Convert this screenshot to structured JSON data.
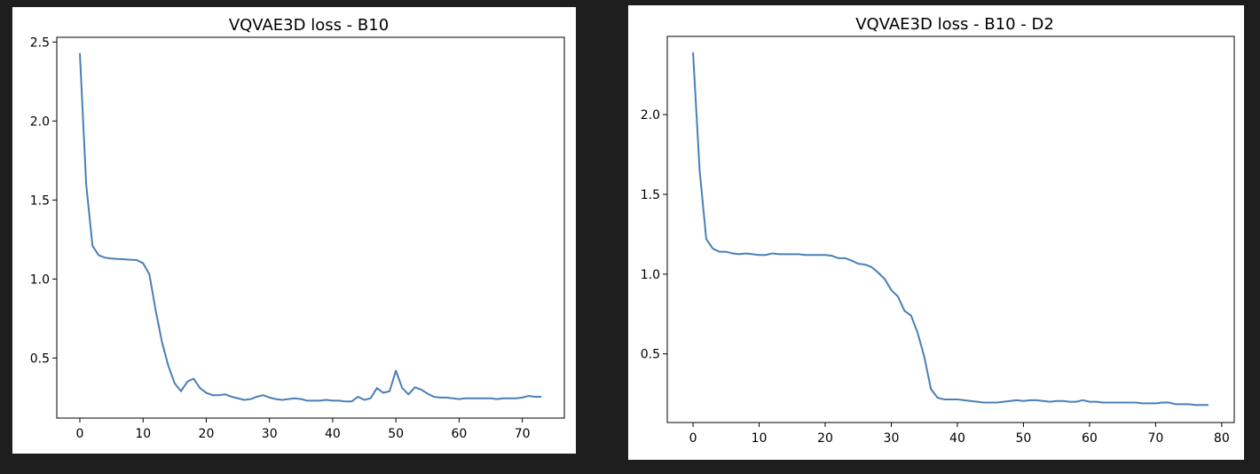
{
  "chart_data": [
    {
      "type": "line",
      "title": "VQVAE3D loss - B10",
      "xlabel": "",
      "ylabel": "",
      "xlim": [
        -3.65,
        76.65
      ],
      "ylim": [
        0.12,
        2.53
      ],
      "xticks": [
        0,
        10,
        20,
        30,
        40,
        50,
        60,
        70
      ],
      "yticks": [
        0.5,
        1.0,
        1.5,
        2.0,
        2.5
      ],
      "xtick_labels": [
        "0",
        "10",
        "20",
        "30",
        "40",
        "50",
        "60",
        "70"
      ],
      "ytick_labels": [
        "0.5",
        "1.0",
        "1.5",
        "2.0",
        "2.5"
      ],
      "grid": false,
      "legend": "none",
      "line_color": "#4a7fb8",
      "series": [
        {
          "x": [
            0,
            1,
            2,
            3,
            4,
            5,
            6,
            7,
            8,
            9,
            10,
            11,
            12,
            13,
            14,
            15,
            16,
            17,
            18,
            19,
            20,
            21,
            22,
            23,
            24,
            25,
            26,
            27,
            28,
            29,
            30,
            31,
            32,
            33,
            34,
            35,
            36,
            37,
            38,
            39,
            40,
            41,
            42,
            43,
            44,
            45,
            46,
            47,
            48,
            49,
            50,
            51,
            52,
            53,
            54,
            55,
            56,
            57,
            58,
            59,
            60,
            61,
            62,
            63,
            64,
            65,
            66,
            67,
            68,
            69,
            70,
            71,
            72,
            73
          ],
          "values": [
            2.43,
            1.6,
            1.21,
            1.15,
            1.135,
            1.13,
            1.127,
            1.125,
            1.122,
            1.12,
            1.1,
            1.03,
            0.8,
            0.6,
            0.45,
            0.34,
            0.29,
            0.35,
            0.37,
            0.31,
            0.28,
            0.265,
            0.265,
            0.27,
            0.255,
            0.245,
            0.235,
            0.24,
            0.255,
            0.265,
            0.25,
            0.24,
            0.235,
            0.24,
            0.245,
            0.24,
            0.23,
            0.23,
            0.23,
            0.235,
            0.23,
            0.23,
            0.225,
            0.225,
            0.255,
            0.235,
            0.245,
            0.31,
            0.28,
            0.29,
            0.42,
            0.31,
            0.27,
            0.315,
            0.3,
            0.275,
            0.255,
            0.25,
            0.25,
            0.245,
            0.24,
            0.245,
            0.245,
            0.245,
            0.245,
            0.245,
            0.24,
            0.245,
            0.245,
            0.245,
            0.25,
            0.26,
            0.255,
            0.255
          ]
        }
      ]
    },
    {
      "type": "line",
      "title": "VQVAE3D loss - B10 - D2",
      "xlabel": "",
      "ylabel": "",
      "xlim": [
        -3.9,
        81.9
      ],
      "ylim": [
        0.07,
        2.49
      ],
      "xticks": [
        0,
        10,
        20,
        30,
        40,
        50,
        60,
        70,
        80
      ],
      "yticks": [
        0.5,
        1.0,
        1.5,
        2.0
      ],
      "xtick_labels": [
        "0",
        "10",
        "20",
        "30",
        "40",
        "50",
        "60",
        "70",
        "80"
      ],
      "ytick_labels": [
        "0.5",
        "1.0",
        "1.5",
        "2.0"
      ],
      "grid": false,
      "legend": "none",
      "line_color": "#4a7fb8",
      "series": [
        {
          "x": [
            0,
            1,
            2,
            3,
            4,
            5,
            6,
            7,
            8,
            9,
            10,
            11,
            12,
            13,
            14,
            15,
            16,
            17,
            18,
            19,
            20,
            21,
            22,
            23,
            24,
            25,
            26,
            27,
            28,
            29,
            30,
            31,
            32,
            33,
            34,
            35,
            36,
            37,
            38,
            39,
            40,
            41,
            42,
            43,
            44,
            45,
            46,
            47,
            48,
            49,
            50,
            51,
            52,
            53,
            54,
            55,
            56,
            57,
            58,
            59,
            60,
            61,
            62,
            63,
            64,
            65,
            66,
            67,
            68,
            69,
            70,
            71,
            72,
            73,
            74,
            75,
            76,
            77,
            78
          ],
          "values": [
            2.39,
            1.65,
            1.22,
            1.16,
            1.14,
            1.14,
            1.13,
            1.125,
            1.13,
            1.125,
            1.12,
            1.12,
            1.13,
            1.125,
            1.125,
            1.125,
            1.125,
            1.12,
            1.12,
            1.12,
            1.12,
            1.115,
            1.1,
            1.1,
            1.085,
            1.065,
            1.06,
            1.045,
            1.01,
            0.97,
            0.9,
            0.86,
            0.77,
            0.74,
            0.63,
            0.48,
            0.28,
            0.225,
            0.215,
            0.215,
            0.215,
            0.21,
            0.205,
            0.2,
            0.195,
            0.195,
            0.195,
            0.2,
            0.205,
            0.21,
            0.205,
            0.21,
            0.21,
            0.205,
            0.2,
            0.205,
            0.205,
            0.2,
            0.2,
            0.21,
            0.2,
            0.2,
            0.195,
            0.195,
            0.195,
            0.195,
            0.195,
            0.195,
            0.19,
            0.19,
            0.19,
            0.195,
            0.195,
            0.185,
            0.185,
            0.185,
            0.18,
            0.18,
            0.18
          ]
        }
      ]
    }
  ]
}
